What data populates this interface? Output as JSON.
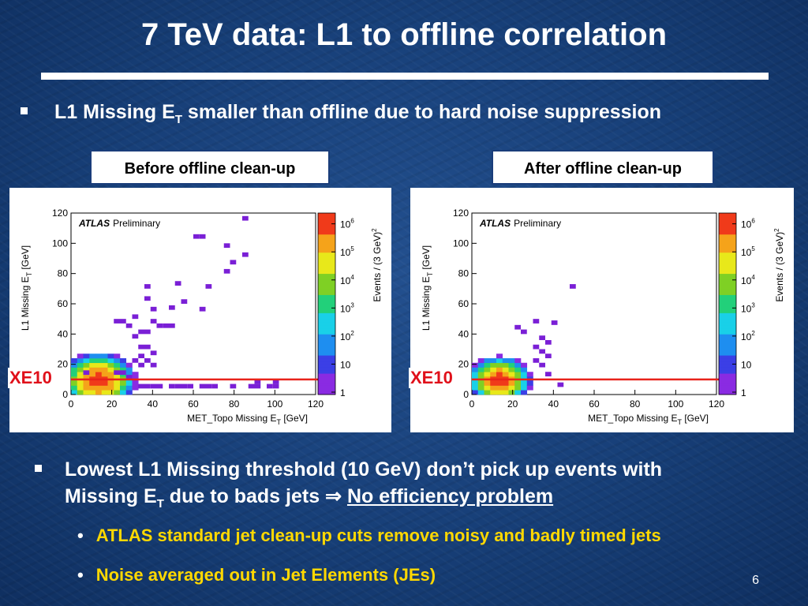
{
  "slide": {
    "title": "7 TeV data: L1 to offline correlation",
    "bullet1": {
      "pre": "L1 Missing E",
      "sub": "T",
      "post": " smaller than offline due to hard noise suppression"
    },
    "labels": {
      "before": "Before offline clean-up",
      "after": "After offline clean-up"
    },
    "threshold_label": "XE10",
    "bullet2": {
      "line1": "Lowest L1 Missing threshold (10 GeV) don’t pick up events with",
      "line2_pre": "Missing E",
      "line2_sub": "T",
      "line2_mid": " due to bads jets ",
      "arrow": "⇒",
      "link": "No efficiency problem"
    },
    "subbullets": [
      "ATLAS standard jet clean-up cuts remove noisy and badly timed jets",
      "Noise averaged out in Jet Elements (JEs)"
    ],
    "page_number": "6",
    "colors": {
      "threshold_line": "#e8231b",
      "subbullet_text": "#ffd800",
      "marker": "#7a1fd6"
    }
  },
  "chart_data": [
    {
      "type": "heatmap",
      "name": "before",
      "xlabel": "MET_Topo Missing E",
      "xlabel_sub": "T",
      "xlabel_unit": " [GeV]",
      "ylabel": "L1 Missing E",
      "ylabel_sub": "T",
      "ylabel_unit": " [GeV]",
      "zlabel": "Events / (3 GeV)",
      "zlabel_sup": "2",
      "atlas": "ATLAS",
      "preliminary": "Preliminary",
      "xlim": [
        0,
        120
      ],
      "ylim": [
        0,
        120
      ],
      "xticks": [
        "0",
        "20",
        "40",
        "60",
        "80",
        "100",
        "120"
      ],
      "yticks": [
        "0",
        "20",
        "40",
        "60",
        "80",
        "100",
        "120"
      ],
      "zticks": [
        {
          "base": "1",
          "exp": ""
        },
        {
          "base": "10",
          "exp": ""
        },
        {
          "base": "10",
          "exp": "2"
        },
        {
          "base": "10",
          "exp": "3"
        },
        {
          "base": "10",
          "exp": "4"
        },
        {
          "base": "10",
          "exp": "5"
        },
        {
          "base": "10",
          "exp": "6"
        }
      ],
      "threshold_y": 10,
      "points": [
        [
          84,
          115
        ],
        [
          60,
          103
        ],
        [
          63,
          103
        ],
        [
          75,
          97
        ],
        [
          84,
          91
        ],
        [
          78,
          86
        ],
        [
          75,
          80
        ],
        [
          36,
          70
        ],
        [
          51,
          72
        ],
        [
          66,
          70
        ],
        [
          36,
          62
        ],
        [
          54,
          60
        ],
        [
          48,
          56
        ],
        [
          39,
          55
        ],
        [
          63,
          55
        ],
        [
          30,
          50
        ],
        [
          39,
          47
        ],
        [
          42,
          44
        ],
        [
          45,
          44
        ],
        [
          48,
          44
        ],
        [
          21,
          47
        ],
        [
          24,
          47
        ],
        [
          27,
          44
        ],
        [
          33,
          40
        ],
        [
          36,
          40
        ],
        [
          30,
          37
        ],
        [
          33,
          30
        ],
        [
          36,
          30
        ],
        [
          33,
          24
        ],
        [
          39,
          26
        ],
        [
          30,
          21
        ],
        [
          36,
          21
        ],
        [
          33,
          18
        ],
        [
          39,
          18
        ],
        [
          6,
          13
        ],
        [
          21,
          13
        ],
        [
          24,
          13
        ],
        [
          27,
          10
        ],
        [
          33,
          4
        ],
        [
          36,
          4
        ],
        [
          39,
          4
        ],
        [
          42,
          4
        ],
        [
          48,
          4
        ],
        [
          51,
          4
        ],
        [
          54,
          4
        ],
        [
          57,
          4
        ],
        [
          63,
          4
        ],
        [
          66,
          4
        ],
        [
          69,
          4
        ],
        [
          78,
          4
        ],
        [
          87,
          4
        ],
        [
          90,
          4
        ],
        [
          96,
          4
        ],
        [
          99,
          4
        ],
        [
          99,
          7
        ],
        [
          90,
          7
        ]
      ],
      "blob": {
        "x": 12,
        "y": 8,
        "peak": 6,
        "sx": 7,
        "sy": 7,
        "range_x": 30,
        "range_y": 40
      }
    },
    {
      "type": "heatmap",
      "name": "after",
      "xlabel": "MET_Topo Missing E",
      "xlabel_sub": "T",
      "xlabel_unit": " [GeV]",
      "ylabel": "L1 Missing E",
      "ylabel_sub": "T",
      "ylabel_unit": " [GeV]",
      "zlabel": "Events / (3 GeV)",
      "zlabel_sup": "2",
      "atlas": "ATLAS",
      "preliminary": "Preliminary",
      "xlim": [
        0,
        120
      ],
      "ylim": [
        0,
        120
      ],
      "xticks": [
        "0",
        "20",
        "40",
        "60",
        "80",
        "100",
        "120"
      ],
      "yticks": [
        "0",
        "20",
        "40",
        "60",
        "80",
        "100",
        "120"
      ],
      "zticks": [
        {
          "base": "1",
          "exp": ""
        },
        {
          "base": "10",
          "exp": ""
        },
        {
          "base": "10",
          "exp": "2"
        },
        {
          "base": "10",
          "exp": "3"
        },
        {
          "base": "10",
          "exp": "4"
        },
        {
          "base": "10",
          "exp": "5"
        },
        {
          "base": "10",
          "exp": "6"
        }
      ],
      "threshold_y": 10,
      "points": [
        [
          48,
          70
        ],
        [
          30,
          47
        ],
        [
          39,
          46
        ],
        [
          21,
          43
        ],
        [
          24,
          40
        ],
        [
          33,
          36
        ],
        [
          36,
          33
        ],
        [
          30,
          30
        ],
        [
          33,
          27
        ],
        [
          36,
          24
        ],
        [
          30,
          21
        ],
        [
          33,
          18
        ],
        [
          36,
          12
        ],
        [
          42,
          5
        ]
      ],
      "blob": {
        "x": 12,
        "y": 8,
        "peak": 6,
        "sx": 6,
        "sy": 6,
        "range_x": 30,
        "range_y": 40
      }
    }
  ]
}
